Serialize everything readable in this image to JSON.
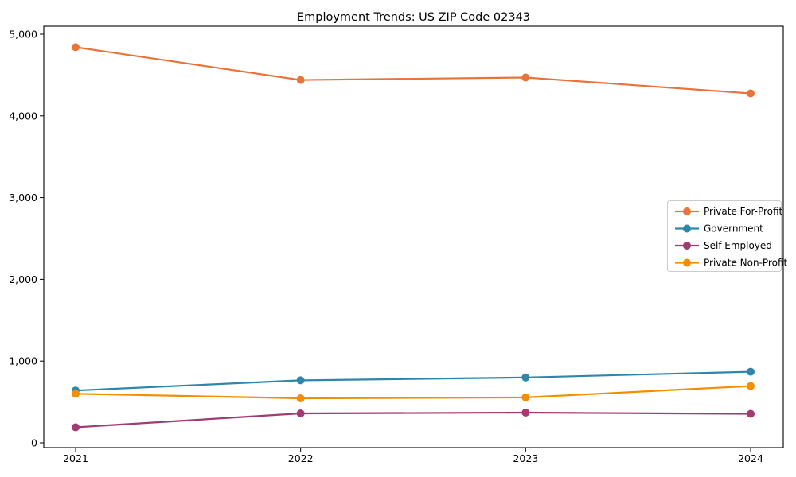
{
  "figure": {
    "background": "#ffffff",
    "spine_color": "#000000",
    "text_color": "#000000"
  },
  "chart_data": {
    "type": "line",
    "title": "Employment Trends: US ZIP Code 02343",
    "xlabel": "",
    "ylabel": "",
    "x": [
      2021,
      2022,
      2023,
      2024
    ],
    "x_tick_labels": [
      "2021",
      "2022",
      "2023",
      "2024"
    ],
    "series": [
      {
        "name": "Private For-Profit",
        "color": "#E8743B",
        "values": [
          4840,
          4440,
          4470,
          4275
        ]
      },
      {
        "name": "Government",
        "color": "#2E86AB",
        "values": [
          640,
          765,
          800,
          870
        ]
      },
      {
        "name": "Self-Employed",
        "color": "#A23B72",
        "values": [
          190,
          360,
          370,
          355
        ]
      },
      {
        "name": "Private Non-Profit",
        "color": "#F18F01",
        "values": [
          600,
          545,
          555,
          695
        ]
      }
    ],
    "ylim": [
      0,
      5000
    ],
    "yticks": [
      0,
      1000,
      2000,
      3000,
      4000,
      5000
    ],
    "ytick_labels": [
      "0",
      "1,000",
      "2,000",
      "3,000",
      "4,000",
      "5,000"
    ],
    "grid": false,
    "marker": "circle",
    "legend": {
      "position": "center-right",
      "frame_color": "#cccccc",
      "frame_fill": "#ffffff",
      "entries": [
        "Private For-Profit",
        "Government",
        "Self-Employed",
        "Private Non-Profit"
      ]
    }
  }
}
